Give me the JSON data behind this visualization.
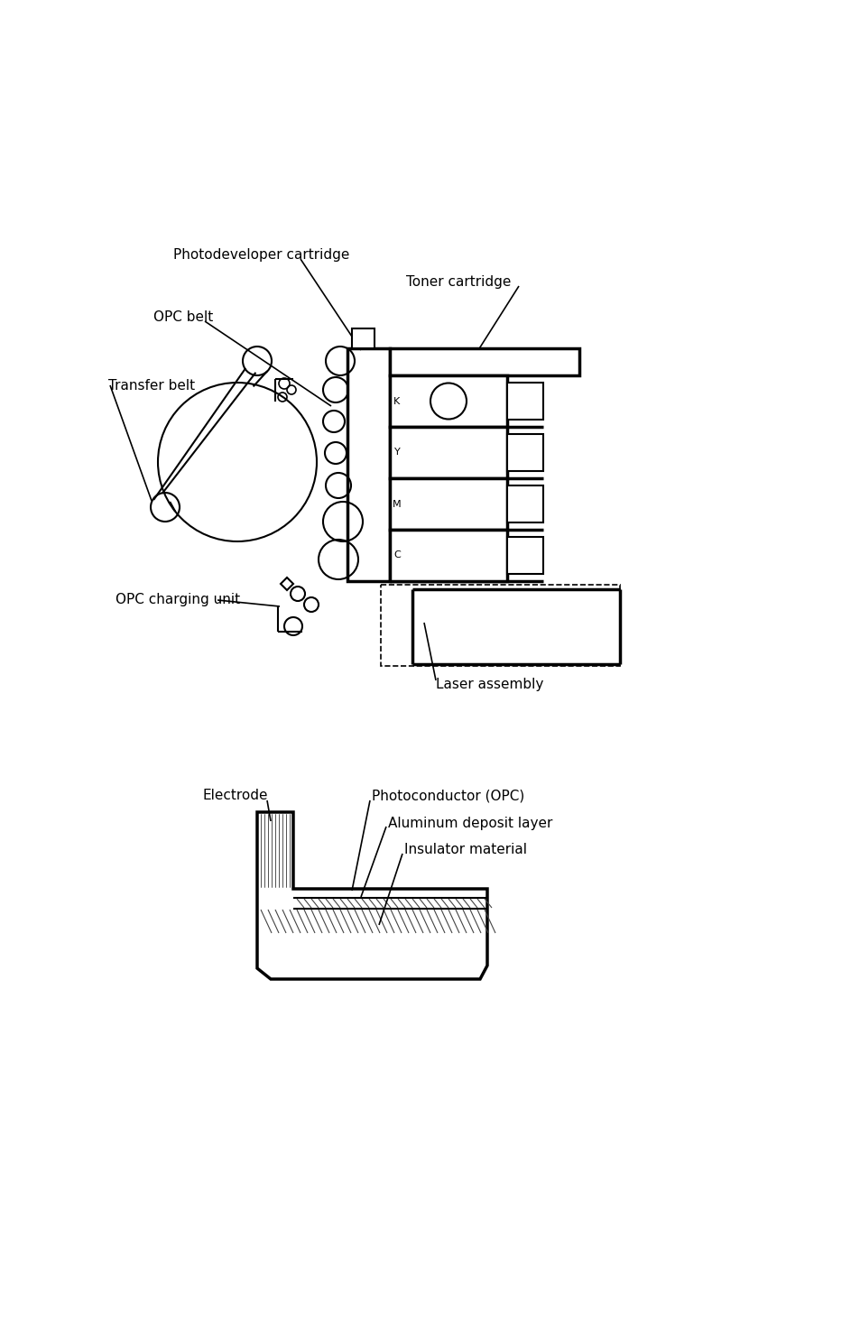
{
  "bg_color": "#ffffff",
  "line_color": "#000000",
  "fig_width": 9.54,
  "fig_height": 14.75,
  "labels": {
    "photodeveloper_cartridge": "Photodeveloper cartridge",
    "toner_cartridge": "Toner cartridge",
    "opc_belt": "OPC belt",
    "transfer_belt": "Transfer belt",
    "opc_charging_unit": "OPC charging unit",
    "laser_assembly": "Laser assembly",
    "electrode": "Electrode",
    "photoconductor": "Photoconductor (OPC)",
    "aluminum_layer": "Aluminum deposit layer",
    "insulator": "Insulator material"
  },
  "font_size": 11
}
